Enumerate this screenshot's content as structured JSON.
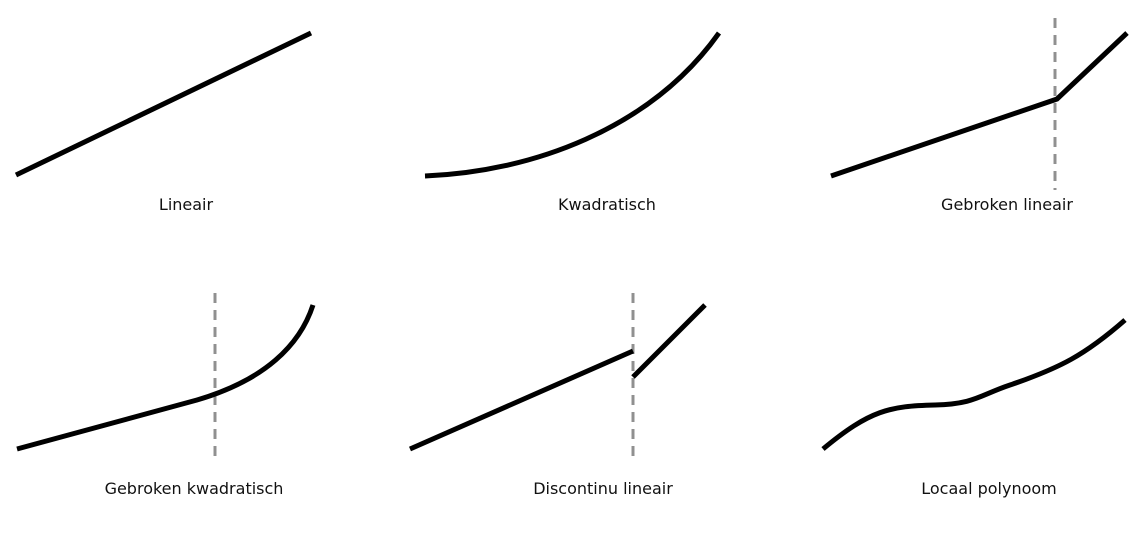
{
  "panels": [
    {
      "label": "Lineair"
    },
    {
      "label": "Kwadratisch"
    },
    {
      "label": "Gebroken lineair"
    },
    {
      "label": "Gebroken kwadratisch"
    },
    {
      "label": "Discontinu lineair"
    },
    {
      "label": "Locaal polynoom"
    }
  ],
  "colors": {
    "curve": "#000000",
    "cutoff_line": "#909090",
    "background": "#ffffff"
  }
}
